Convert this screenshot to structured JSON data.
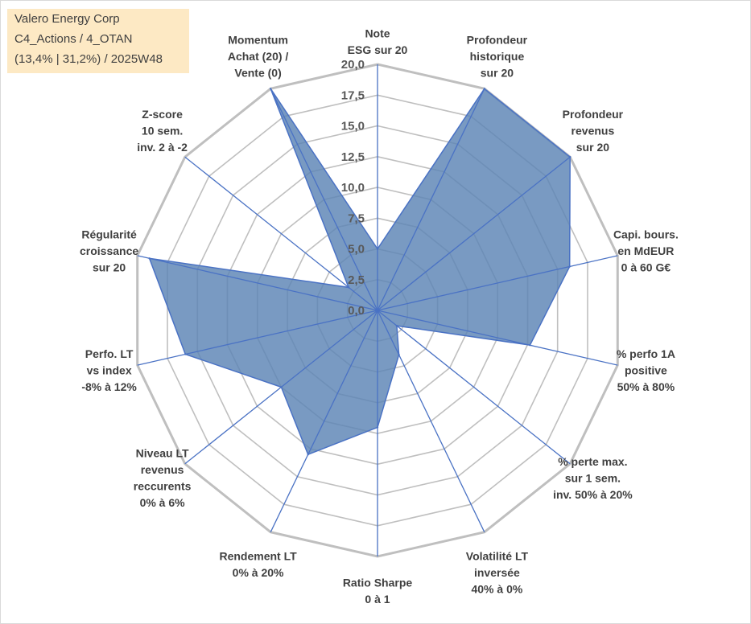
{
  "info_box": {
    "company": "Valero Energy Corp",
    "category": "C4_Actions / 4_OTAN",
    "stats": "(13,4% | 31,2%) / 2025W48"
  },
  "colors": {
    "fill": "#5b84b5",
    "stroke": "#4a72c4",
    "grid": "#bfbfbf",
    "info_bg": "#fde9c4",
    "text": "#404040"
  },
  "chart_data": {
    "type": "radar",
    "title": "",
    "range": [
      0,
      20
    ],
    "tick_labels": [
      "0,0",
      "2,5",
      "5,0",
      "7,5",
      "10,0",
      "12,5",
      "15,0",
      "17,5",
      "20,0"
    ],
    "axes": [
      {
        "label": [
          "Note",
          "ESG sur 20"
        ],
        "value": 5
      },
      {
        "label": [
          "Profondeur",
          "historique",
          "sur 20"
        ],
        "value": 20
      },
      {
        "label": [
          "Profondeur",
          "revenus",
          "sur 20"
        ],
        "value": 20
      },
      {
        "label": [
          "Capi. bours.",
          "en MdEUR",
          "0 à 60 G€"
        ],
        "value": 16
      },
      {
        "label": [
          "% perfo 1A",
          "positive",
          "50% à 80%"
        ],
        "value": 12.7
      },
      {
        "label": [
          "% perte max.",
          "sur 1 sem.",
          "inv. 50% à 20%"
        ],
        "value": 2
      },
      {
        "label": [
          "Volatilité LT",
          "inversée",
          "40% à 0%"
        ],
        "value": 4
      },
      {
        "label": [
          "Ratio Sharpe",
          "0 à 1"
        ],
        "value": 9.5
      },
      {
        "label": [
          "Rendement LT",
          "0% à 20%"
        ],
        "value": 13
      },
      {
        "label": [
          "Niveau LT",
          "revenus",
          "reccurents",
          "0% à 6%"
        ],
        "value": 10
      },
      {
        "label": [
          "Perfo. LT",
          "vs index",
          "-8% à 12%"
        ],
        "value": 16
      },
      {
        "label": [
          "Régularité",
          "croissance",
          "sur 20"
        ],
        "value": 19
      },
      {
        "label": [
          "Z-score",
          "10 sem.",
          "inv. 2 à -2"
        ],
        "value": 3
      },
      {
        "label": [
          "Momentum",
          "Achat (20) /",
          "Vente (0)"
        ],
        "value": 20
      }
    ]
  }
}
